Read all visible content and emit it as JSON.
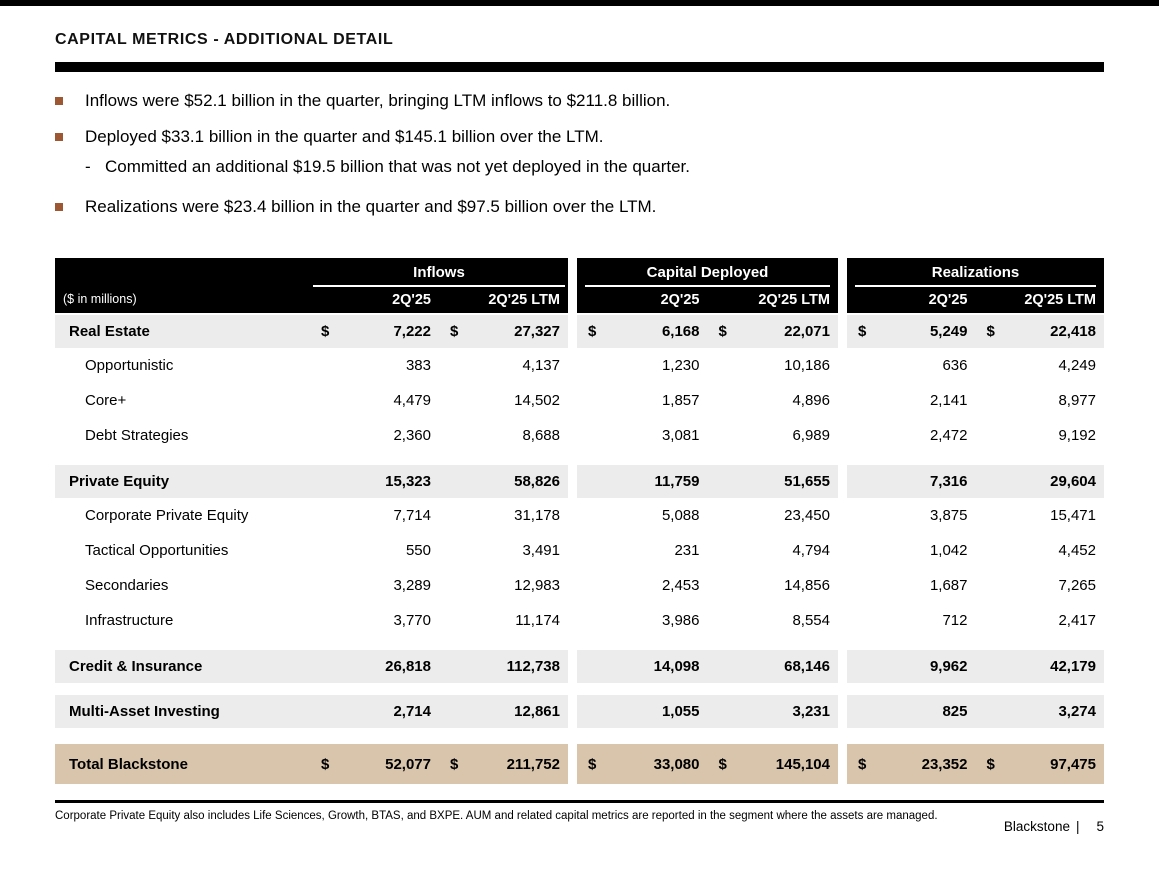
{
  "page": {
    "title": "CAPITAL METRICS - ADDITIONAL DETAIL",
    "footnote": "Corporate Private Equity also includes Life Sciences, Growth, BTAS, and BXPE. AUM and related capital metrics are reported in the segment where the assets are managed.",
    "brand": "Blackstone",
    "brand_separator": "|",
    "page_number": "5"
  },
  "colors": {
    "bullet_accent": "#9E5733",
    "header_bg": "#000000",
    "section_row_bg": "#ECECEC",
    "total_row_bg": "#D8C5AC"
  },
  "bullets": [
    {
      "level": 1,
      "text": "Inflows were $52.1 billion in the quarter, bringing LTM inflows to $211.8 billion."
    },
    {
      "level": 1,
      "text": "Deployed $33.1 billion in the quarter and $145.1 billion over the LTM."
    },
    {
      "level": 2,
      "marker": "-",
      "text": "Committed an additional $19.5 billion that was not yet deployed in the quarter."
    },
    {
      "level": 1,
      "text": "Realizations were $23.4 billion in the quarter and $97.5 billion over the LTM."
    }
  ],
  "table": {
    "units_label": "($ in millions)",
    "currency_symbol": "$",
    "groups": [
      {
        "title": "Inflows",
        "columns": [
          "2Q'25",
          "2Q'25 LTM"
        ]
      },
      {
        "title": "Capital Deployed",
        "columns": [
          "2Q'25",
          "2Q'25 LTM"
        ]
      },
      {
        "title": "Realizations",
        "columns": [
          "2Q'25",
          "2Q'25 LTM"
        ]
      }
    ],
    "rows": [
      {
        "label": "Real Estate",
        "style": "section",
        "dollar": true,
        "values": [
          "7,222",
          "27,327",
          "6,168",
          "22,071",
          "5,249",
          "22,418"
        ]
      },
      {
        "label": "Opportunistic",
        "style": "sub",
        "dollar": false,
        "values": [
          "383",
          "4,137",
          "1,230",
          "10,186",
          "636",
          "4,249"
        ]
      },
      {
        "label": "Core+",
        "style": "sub",
        "dollar": false,
        "values": [
          "4,479",
          "14,502",
          "1,857",
          "4,896",
          "2,141",
          "8,977"
        ]
      },
      {
        "label": "Debt Strategies",
        "style": "sub",
        "dollar": false,
        "values": [
          "2,360",
          "8,688",
          "3,081",
          "6,989",
          "2,472",
          "9,192"
        ]
      },
      {
        "label": "Private Equity",
        "style": "section",
        "dollar": false,
        "values": [
          "15,323",
          "58,826",
          "11,759",
          "51,655",
          "7,316",
          "29,604"
        ]
      },
      {
        "label": "Corporate Private Equity",
        "style": "sub",
        "dollar": false,
        "values": [
          "7,714",
          "31,178",
          "5,088",
          "23,450",
          "3,875",
          "15,471"
        ]
      },
      {
        "label": "Tactical Opportunities",
        "style": "sub",
        "dollar": false,
        "values": [
          "550",
          "3,491",
          "231",
          "4,794",
          "1,042",
          "4,452"
        ]
      },
      {
        "label": "Secondaries",
        "style": "sub",
        "dollar": false,
        "values": [
          "3,289",
          "12,983",
          "2,453",
          "14,856",
          "1,687",
          "7,265"
        ]
      },
      {
        "label": "Infrastructure",
        "style": "sub",
        "dollar": false,
        "values": [
          "3,770",
          "11,174",
          "3,986",
          "8,554",
          "712",
          "2,417"
        ]
      },
      {
        "label": "Credit & Insurance",
        "style": "section",
        "dollar": false,
        "values": [
          "26,818",
          "112,738",
          "14,098",
          "68,146",
          "9,962",
          "42,179"
        ]
      },
      {
        "label": "Multi-Asset Investing",
        "style": "section",
        "dollar": false,
        "values": [
          "2,714",
          "12,861",
          "1,055",
          "3,231",
          "825",
          "3,274"
        ]
      },
      {
        "label": "Total Blackstone",
        "style": "total",
        "dollar": true,
        "values": [
          "52,077",
          "211,752",
          "33,080",
          "145,104",
          "23,352",
          "97,475"
        ]
      }
    ]
  }
}
